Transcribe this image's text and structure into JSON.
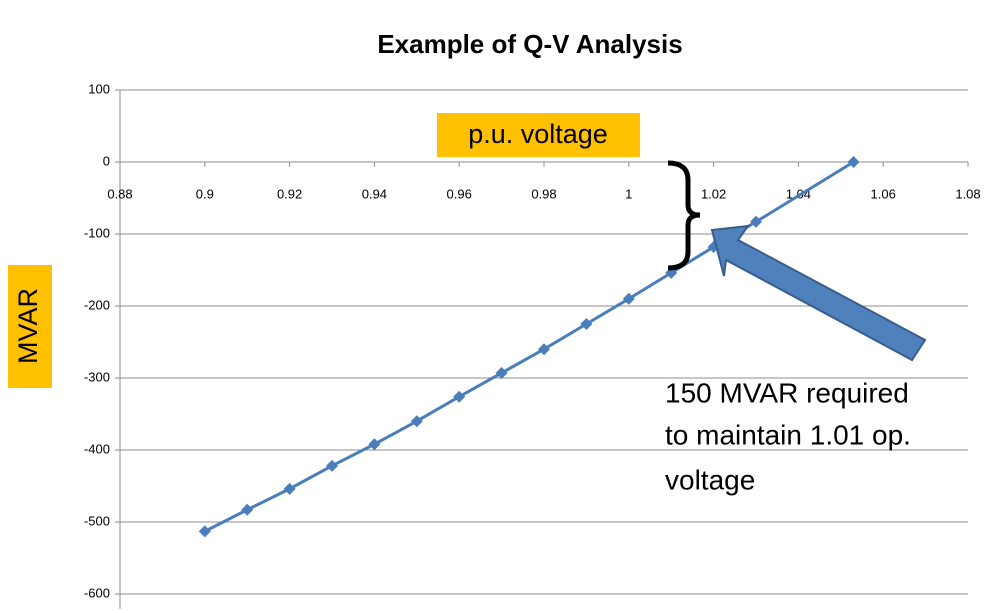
{
  "chart_data": {
    "type": "line",
    "title": "Example of Q-V Analysis",
    "x_label": "p.u. voltage",
    "y_label": "MVAR",
    "annotation": [
      "150 MVAR required",
      "to maintain 1.01 op.",
      "voltage"
    ],
    "x": [
      0.9,
      0.91,
      0.92,
      0.93,
      0.94,
      0.95,
      0.96,
      0.97,
      0.98,
      0.99,
      1.0,
      1.01,
      1.02,
      1.03,
      1.053
    ],
    "series": [
      {
        "name": "MVAR",
        "color": "#4a7ebb",
        "values": [
          -513,
          -483,
          -454,
          -422,
          -392,
          -360,
          -326,
          -293,
          -260,
          -225,
          -190,
          -154,
          -118,
          -83,
          0
        ]
      }
    ],
    "xlim": [
      0.88,
      1.08
    ],
    "xticks": [
      0.88,
      0.9,
      0.92,
      0.94,
      0.96,
      0.98,
      1,
      1.02,
      1.04,
      1.06,
      1.08
    ],
    "ylim": [
      -600,
      100
    ],
    "yticks": [
      -600,
      -500,
      -400,
      -300,
      -200,
      -100,
      0,
      100
    ],
    "grid": true
  }
}
